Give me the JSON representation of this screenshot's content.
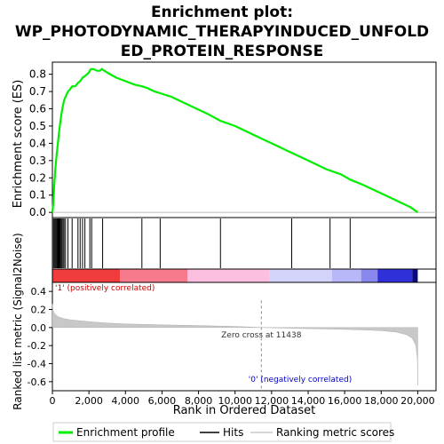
{
  "chart_data": {
    "type": "line",
    "title_lines": [
      "Enrichment plot:",
      "WP_PHOTODYNAMIC_THERAPYINDUCED_UNFOLD",
      "ED_PROTEIN_RESPONSE"
    ],
    "top_panel": {
      "ylabel": "Enrichment score (ES)",
      "ylim": [
        -0.03,
        0.87
      ],
      "yticks": [
        "0.0",
        "0.1",
        "0.2",
        "0.3",
        "0.4",
        "0.5",
        "0.6",
        "0.7",
        "0.8"
      ],
      "ytick_values": [
        0.0,
        0.1,
        0.2,
        0.3,
        0.4,
        0.5,
        0.6,
        0.7,
        0.8
      ],
      "series_name": "Enrichment profile",
      "color": "#00ee00",
      "points": [
        [
          0,
          0.0
        ],
        [
          50,
          0.05
        ],
        [
          100,
          0.16
        ],
        [
          160,
          0.25
        ],
        [
          230,
          0.33
        ],
        [
          300,
          0.4
        ],
        [
          360,
          0.46
        ],
        [
          420,
          0.51
        ],
        [
          480,
          0.56
        ],
        [
          560,
          0.61
        ],
        [
          640,
          0.65
        ],
        [
          720,
          0.67
        ],
        [
          850,
          0.7
        ],
        [
          950,
          0.71
        ],
        [
          1080,
          0.73
        ],
        [
          1250,
          0.73
        ],
        [
          1400,
          0.75
        ],
        [
          1520,
          0.76
        ],
        [
          1650,
          0.78
        ],
        [
          1780,
          0.79
        ],
        [
          1900,
          0.8
        ],
        [
          2000,
          0.81
        ],
        [
          2100,
          0.83
        ],
        [
          2250,
          0.83
        ],
        [
          2450,
          0.82
        ],
        [
          2600,
          0.82
        ],
        [
          2700,
          0.83
        ],
        [
          3000,
          0.81
        ],
        [
          3500,
          0.78
        ],
        [
          4000,
          0.76
        ],
        [
          4500,
          0.74
        ],
        [
          4900,
          0.73
        ],
        [
          5200,
          0.72
        ],
        [
          5600,
          0.7
        ],
        [
          5900,
          0.69
        ],
        [
          6500,
          0.67
        ],
        [
          7500,
          0.62
        ],
        [
          8500,
          0.57
        ],
        [
          9200,
          0.53
        ],
        [
          10000,
          0.5
        ],
        [
          11000,
          0.45
        ],
        [
          12000,
          0.4
        ],
        [
          13000,
          0.35
        ],
        [
          14000,
          0.3
        ],
        [
          15000,
          0.25
        ],
        [
          15800,
          0.22
        ],
        [
          16300,
          0.19
        ],
        [
          17000,
          0.16
        ],
        [
          18000,
          0.11
        ],
        [
          19000,
          0.06
        ],
        [
          19600,
          0.03
        ],
        [
          20000,
          0.0
        ]
      ]
    },
    "hits": {
      "series_name": "Hits",
      "positions": [
        60,
        110,
        160,
        210,
        260,
        300,
        340,
        380,
        420,
        470,
        520,
        580,
        640,
        720,
        850,
        1080,
        1400,
        1520,
        1650,
        1780,
        2050,
        2150,
        2750,
        4900,
        5900,
        9200,
        13100,
        15200,
        16300
      ]
    },
    "bottom_panel": {
      "ylabel": "Ranked list metric (Signal2Noise)",
      "ylim": [
        -0.7,
        0.5
      ],
      "yticks": [
        "-0.6",
        "-0.4",
        "-0.2",
        "0.0",
        "0.2",
        "0.4"
      ],
      "ytick_values": [
        -0.6,
        -0.4,
        -0.2,
        0.0,
        0.2,
        0.4
      ],
      "series_name": "Ranking metric scores",
      "points": [
        [
          0,
          0.26
        ],
        [
          30,
          0.2
        ],
        [
          100,
          0.16
        ],
        [
          300,
          0.12
        ],
        [
          600,
          0.1
        ],
        [
          1000,
          0.085
        ],
        [
          2000,
          0.065
        ],
        [
          3000,
          0.05
        ],
        [
          4000,
          0.04
        ],
        [
          5000,
          0.035
        ],
        [
          6000,
          0.03
        ],
        [
          7000,
          0.026
        ],
        [
          8000,
          0.022
        ],
        [
          9000,
          0.017
        ],
        [
          10000,
          0.012
        ],
        [
          11000,
          0.004
        ],
        [
          11438,
          0.0
        ],
        [
          12000,
          -0.003
        ],
        [
          13000,
          -0.008
        ],
        [
          14000,
          -0.012
        ],
        [
          15000,
          -0.016
        ],
        [
          16000,
          -0.02
        ],
        [
          17000,
          -0.026
        ],
        [
          18000,
          -0.035
        ],
        [
          18800,
          -0.05
        ],
        [
          19400,
          -0.08
        ],
        [
          19700,
          -0.12
        ],
        [
          19900,
          -0.2
        ],
        [
          19980,
          -0.35
        ],
        [
          20000,
          -0.64
        ]
      ]
    },
    "xlabel": "Rank in Ordered Dataset",
    "xlim": [
      0,
      21000
    ],
    "xticks": [
      "0",
      "2,000",
      "4,000",
      "6,000",
      "8,000",
      "10,000",
      "12,000",
      "14,000",
      "16,000",
      "18,000",
      "20,000"
    ],
    "xtick_values": [
      0,
      2000,
      4000,
      6000,
      8000,
      10000,
      12000,
      14000,
      16000,
      18000,
      20000
    ],
    "zero_cross": 11438,
    "annotations": {
      "zero_cross": "Zero cross at 11438",
      "positive": "'1' (positively correlated)",
      "negative": "'0' (negatively correlated)"
    },
    "color_bar": {
      "segments": [
        {
          "from": 0,
          "to": 3700,
          "color": "#f03c3c"
        },
        {
          "from": 3700,
          "to": 7400,
          "color": "#f77a8c"
        },
        {
          "from": 7400,
          "to": 11900,
          "color": "#fbbfe0"
        },
        {
          "from": 11900,
          "to": 15300,
          "color": "#d4d4fb"
        },
        {
          "from": 15300,
          "to": 16900,
          "color": "#b8b8f8"
        },
        {
          "from": 16900,
          "to": 17800,
          "color": "#8888ee"
        },
        {
          "from": 17800,
          "to": 19700,
          "color": "#3030d8"
        },
        {
          "from": 19700,
          "to": 20000,
          "color": "#0a0a80"
        }
      ]
    },
    "legend": {
      "placement": "bottom",
      "items": [
        "Enrichment profile",
        "Hits",
        "Ranking metric scores"
      ]
    },
    "colors": {
      "es_line": "#00ee00",
      "hits": "#000000",
      "metric_fill": "#c8c8c8",
      "positive_text": "#cc0000",
      "negative_text": "#0000cc",
      "zero_line": "#888888"
    }
  }
}
